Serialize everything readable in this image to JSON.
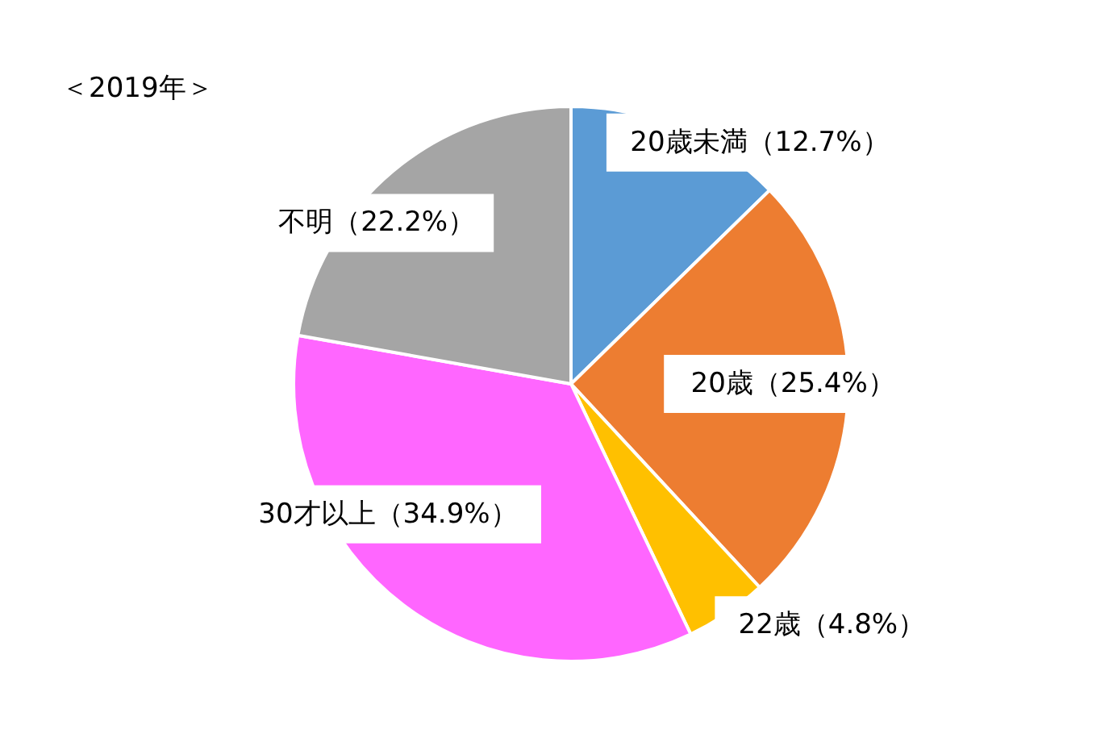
{
  "chart_data": {
    "type": "pie",
    "title": "＜2019年＞",
    "categories": [
      "20歳未満",
      "20歳",
      "22歳",
      "30才以上",
      "不明"
    ],
    "values": [
      12.7,
      25.4,
      4.8,
      34.9,
      22.2
    ],
    "colors": [
      "#5b9bd5",
      "#ed7d31",
      "#ffc000",
      "#ff66ff",
      "#a5a5a5"
    ],
    "value_labels": [
      "（12.7%）",
      "（25.4%）",
      "（4.8%）",
      "（34.9%）",
      "（22.2%）"
    ]
  }
}
